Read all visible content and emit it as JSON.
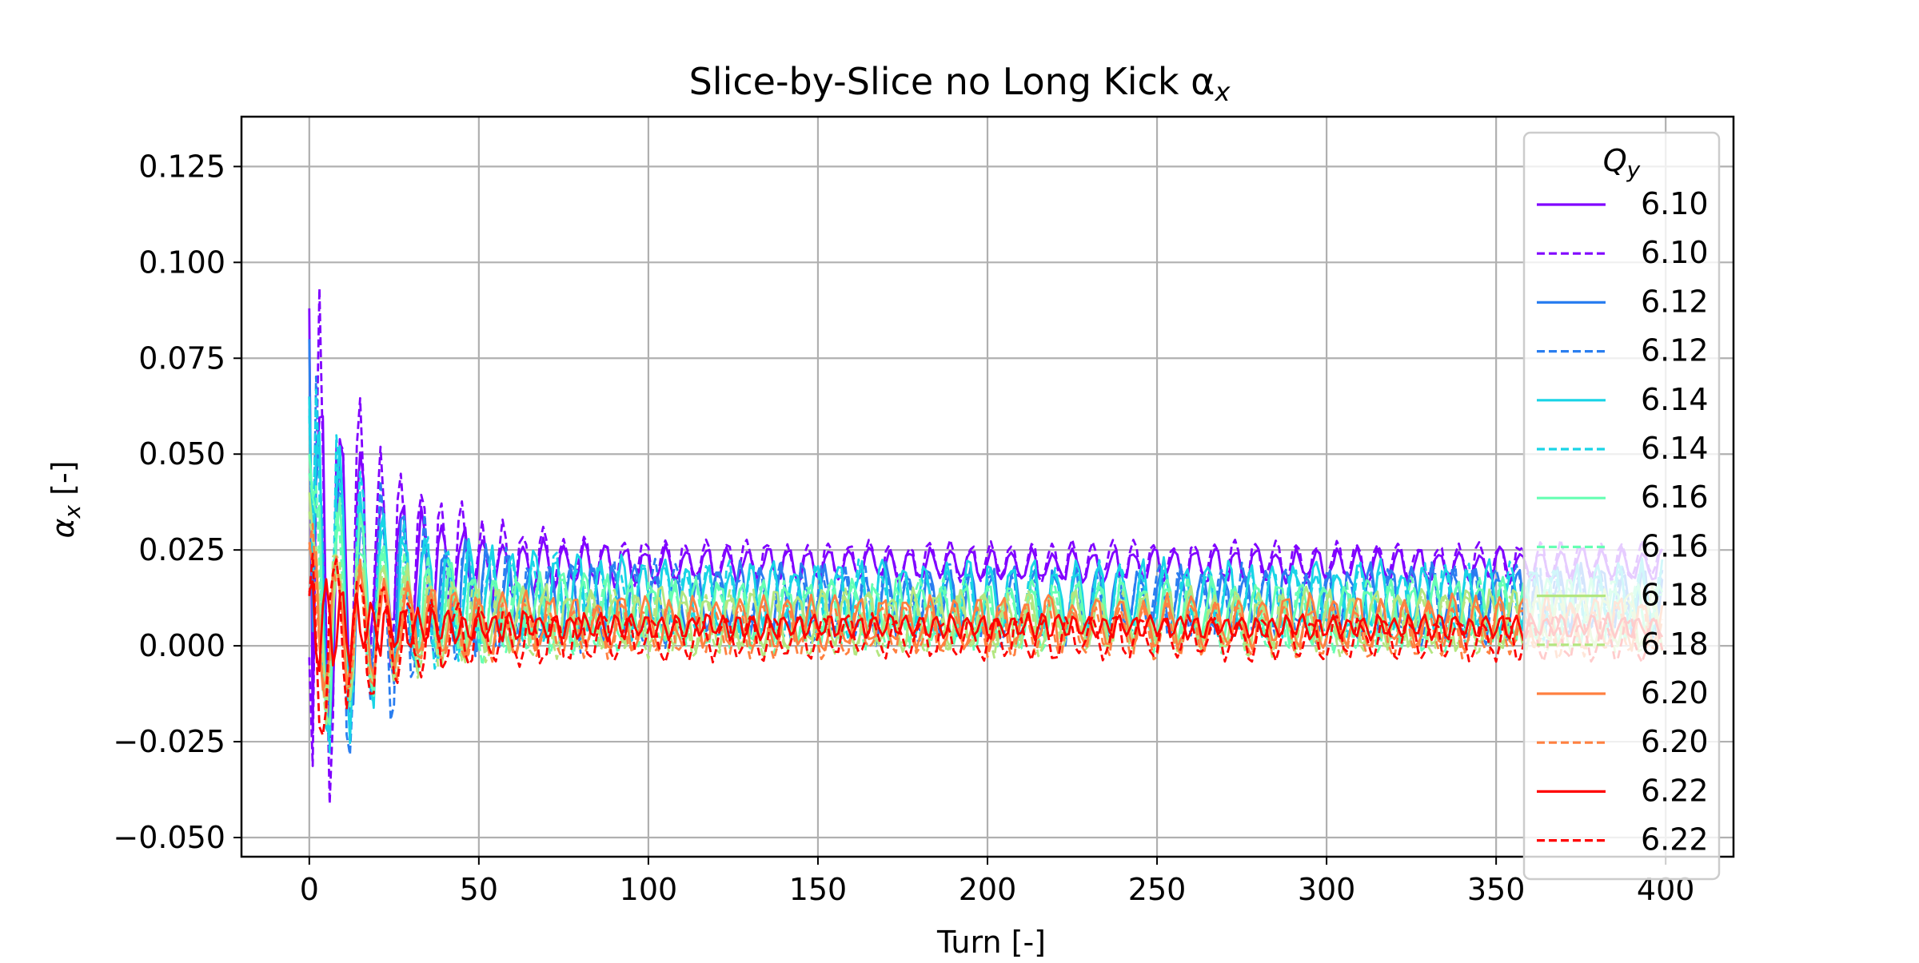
{
  "chart_data": {
    "type": "line",
    "title": "Slice-by-Slice no Long Kick α",
    "title_sub": "x",
    "xlabel": "Turn [-]",
    "ylabel": "α",
    "ylabel_sub": "x",
    "ylabel_unit": " [-]",
    "xlim": [
      -20,
      420
    ],
    "ylim": [
      -0.055,
      0.138
    ],
    "xticks": [
      0,
      50,
      100,
      150,
      200,
      250,
      300,
      350,
      400
    ],
    "yticks": [
      -0.05,
      -0.025,
      0.0,
      0.025,
      0.05,
      0.075,
      0.1,
      0.125
    ],
    "ytick_labels": [
      "−0.050",
      "−0.025",
      "0.000",
      "0.025",
      "0.050",
      "0.075",
      "0.100",
      "0.125"
    ],
    "xtick_labels": [
      "0",
      "50",
      "100",
      "150",
      "200",
      "250",
      "300",
      "350",
      "400"
    ],
    "grid": true,
    "legend": {
      "title": "Q",
      "title_sub": "y",
      "placement": "upper-right"
    },
    "x_range": [
      0,
      399
    ],
    "series": [
      {
        "name": "6.10",
        "color": "#8000ff",
        "style": "solid",
        "start": 0.088,
        "mean": 0.021,
        "amp0": 0.09,
        "ampEnd": 0.007,
        "osc_period": 6.0
      },
      {
        "name": "6.10",
        "color": "#8000ff",
        "style": "dashed",
        "start": -0.003,
        "mean": 0.022,
        "amp0": 0.115,
        "ampEnd": 0.008,
        "osc_period": 6.0
      },
      {
        "name": "6.12",
        "color": "#2a7ef0",
        "style": "solid",
        "start": 0.08,
        "mean": 0.012,
        "amp0": 0.08,
        "ampEnd": 0.014,
        "osc_period": 6.2
      },
      {
        "name": "6.12",
        "color": "#2a7ef0",
        "style": "dashed",
        "start": 0.065,
        "mean": 0.011,
        "amp0": 0.1,
        "ampEnd": 0.016,
        "osc_period": 6.2
      },
      {
        "name": "6.14",
        "color": "#19d4e6",
        "style": "solid",
        "start": 0.065,
        "mean": 0.013,
        "amp0": 0.085,
        "ampEnd": 0.014,
        "osc_period": 6.4
      },
      {
        "name": "6.14",
        "color": "#19d4e6",
        "style": "dashed",
        "start": 0.06,
        "mean": 0.012,
        "amp0": 0.09,
        "ampEnd": 0.015,
        "osc_period": 6.4
      },
      {
        "name": "6.16",
        "color": "#66ffb3",
        "style": "solid",
        "start": 0.05,
        "mean": 0.009,
        "amp0": 0.06,
        "ampEnd": 0.013,
        "osc_period": 6.6
      },
      {
        "name": "6.16",
        "color": "#66ffb3",
        "style": "dashed",
        "start": 0.045,
        "mean": 0.008,
        "amp0": 0.06,
        "ampEnd": 0.014,
        "osc_period": 6.6
      },
      {
        "name": "6.18",
        "color": "#b3e680",
        "style": "solid",
        "start": 0.04,
        "mean": 0.007,
        "amp0": 0.045,
        "ampEnd": 0.012,
        "osc_period": 6.8
      },
      {
        "name": "6.18",
        "color": "#b3e680",
        "style": "dashed",
        "start": 0.035,
        "mean": 0.006,
        "amp0": 0.045,
        "ampEnd": 0.013,
        "osc_period": 6.8
      },
      {
        "name": "6.20",
        "color": "#ff8040",
        "style": "solid",
        "start": 0.027,
        "mean": 0.006,
        "amp0": 0.035,
        "ampEnd": 0.011,
        "osc_period": 7.0
      },
      {
        "name": "6.20",
        "color": "#ff8040",
        "style": "dashed",
        "start": 0.025,
        "mean": 0.004,
        "amp0": 0.04,
        "ampEnd": 0.011,
        "osc_period": 7.0
      },
      {
        "name": "6.22",
        "color": "#ff0000",
        "style": "solid",
        "start": 0.014,
        "mean": 0.005,
        "amp0": 0.025,
        "ampEnd": 0.005,
        "osc_period": 4.5
      },
      {
        "name": "6.22",
        "color": "#ff0000",
        "style": "dashed",
        "start": 0.013,
        "mean": 0.002,
        "amp0": 0.045,
        "ampEnd": 0.009,
        "osc_period": 7.2
      }
    ]
  }
}
